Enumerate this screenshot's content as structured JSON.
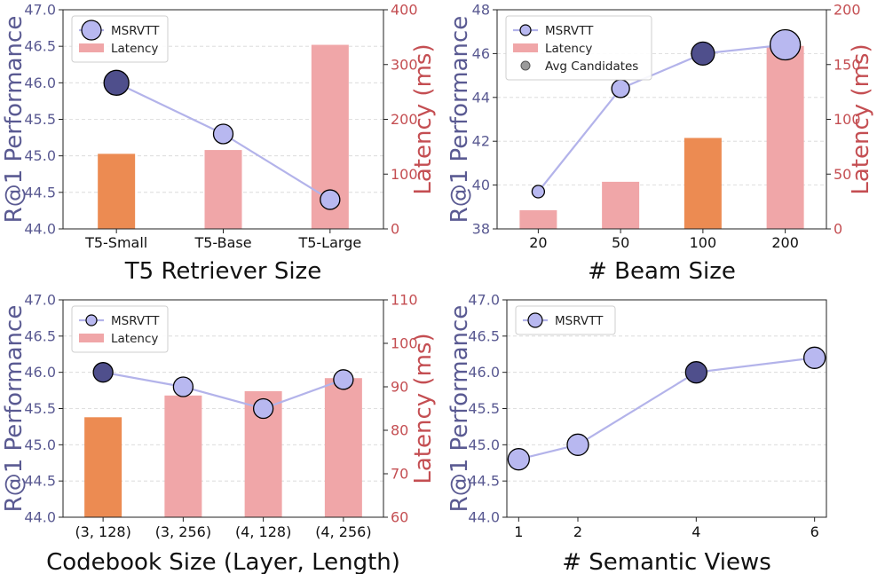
{
  "colors": {
    "left_axis": "#5a5a92",
    "right_axis": "#c44e52",
    "line": "#b3b3ea",
    "marker": "#b8b8f0",
    "marker_highlight": "#4f4f8c",
    "bar": "#f0a6a8",
    "bar_highlight": "#ec8b52"
  },
  "chart_data": [
    {
      "type": "bar+line",
      "title": "",
      "xlabel": "T5 Retriever Size",
      "ylabel_left": "R@1 Performance",
      "ylabel_right": "Latency (ms)",
      "categories": [
        "T5-Small",
        "T5-Base",
        "T5-Large"
      ],
      "left_ylim": [
        44.0,
        47.0
      ],
      "left_ticks": [
        "44.0",
        "44.5",
        "45.0",
        "45.5",
        "46.0",
        "46.5",
        "47.0"
      ],
      "right_ylim": [
        0,
        400
      ],
      "right_ticks": [
        "0",
        "100",
        "200",
        "300",
        "400"
      ],
      "grid": true,
      "series": [
        {
          "name": "MSRVTT",
          "kind": "line",
          "axis": "left",
          "values": [
            46.0,
            45.3,
            44.4
          ],
          "highlight_index": 0
        },
        {
          "name": "Latency",
          "kind": "bar",
          "axis": "right",
          "values": [
            137,
            144,
            336
          ],
          "highlight_index": 0
        }
      ],
      "legend": [
        "MSRVTT",
        "Latency"
      ],
      "legend_position": "top-left"
    },
    {
      "type": "bar+line",
      "title": "",
      "xlabel": "# Beam Size",
      "ylabel_left": "R@1 Performance",
      "ylabel_right": "Latency (ms)",
      "categories": [
        "20",
        "50",
        "100",
        "200"
      ],
      "left_ylim": [
        38,
        48
      ],
      "left_ticks": [
        "38",
        "40",
        "42",
        "44",
        "46",
        "48"
      ],
      "right_ylim": [
        0,
        200
      ],
      "right_ticks": [
        "0",
        "50",
        "100",
        "150",
        "200"
      ],
      "grid": true,
      "series": [
        {
          "name": "MSRVTT",
          "kind": "line",
          "axis": "left",
          "values": [
            39.7,
            44.4,
            46.0,
            46.4
          ],
          "highlight_index": 2
        },
        {
          "name": "Latency",
          "kind": "bar",
          "axis": "right",
          "values": [
            17,
            43,
            83,
            167
          ],
          "highlight_index": 2
        },
        {
          "name": "Avg Candidates",
          "kind": "marker-size",
          "values": [
            20,
            50,
            100,
            200
          ]
        }
      ],
      "legend": [
        "MSRVTT",
        "Latency",
        "Avg Candidates"
      ],
      "legend_position": "top-left"
    },
    {
      "type": "bar+line",
      "title": "",
      "xlabel": "Codebook Size (Layer, Length)",
      "ylabel_left": "R@1 Performance",
      "ylabel_right": "Latency (ms)",
      "categories": [
        "(3, 128)",
        "(3, 256)",
        "(4, 128)",
        "(4, 256)"
      ],
      "left_ylim": [
        44.0,
        47.0
      ],
      "left_ticks": [
        "44.0",
        "44.5",
        "45.0",
        "45.5",
        "46.0",
        "46.5",
        "47.0"
      ],
      "right_ylim": [
        60,
        110
      ],
      "right_ticks": [
        "60",
        "70",
        "80",
        "90",
        "100",
        "110"
      ],
      "grid": true,
      "series": [
        {
          "name": "MSRVTT",
          "kind": "line",
          "axis": "left",
          "values": [
            46.0,
            45.8,
            45.5,
            45.9
          ],
          "highlight_index": 0
        },
        {
          "name": "Latency",
          "kind": "bar",
          "axis": "right",
          "values": [
            83,
            88,
            89,
            92
          ],
          "highlight_index": 0
        }
      ],
      "legend": [
        "MSRVTT",
        "Latency"
      ],
      "legend_position": "top-left"
    },
    {
      "type": "line",
      "title": "",
      "xlabel": "# Semantic Views",
      "ylabel_left": "R@1 Performance",
      "x": [
        1,
        2,
        4,
        6
      ],
      "xticks": [
        "1",
        "2",
        "4",
        "6"
      ],
      "xlim": [
        0.8,
        6.2
      ],
      "left_ylim": [
        44.0,
        47.0
      ],
      "left_ticks": [
        "44.0",
        "44.5",
        "45.0",
        "45.5",
        "46.0",
        "46.5",
        "47.0"
      ],
      "grid": true,
      "series": [
        {
          "name": "MSRVTT",
          "kind": "line",
          "axis": "left",
          "values": [
            44.8,
            45.0,
            46.0,
            46.2
          ],
          "highlight_index": 2
        }
      ],
      "legend": [
        "MSRVTT"
      ],
      "legend_position": "top-left"
    }
  ]
}
